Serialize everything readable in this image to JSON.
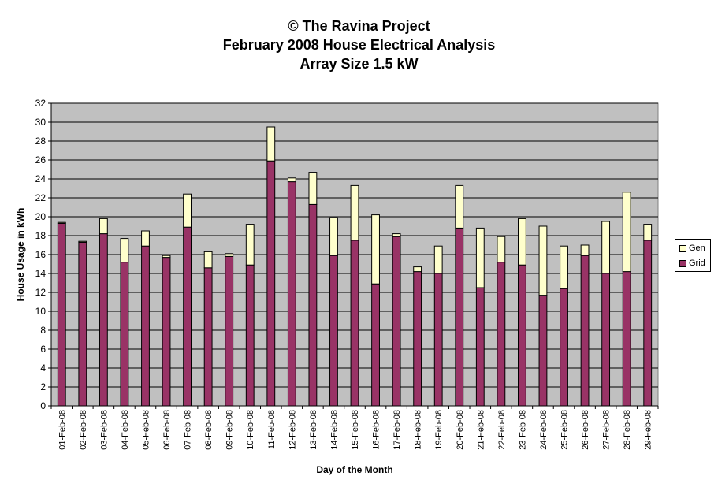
{
  "chart_data": {
    "type": "bar",
    "stacked": true,
    "title": "© The Ravina Project",
    "subtitle_lines": [
      "February 2008 House Electrical Analysis",
      "Array Size 1.5 kW"
    ],
    "xlabel": "Day of the Month",
    "ylabel": "House Usage in kWh",
    "ylim": [
      0,
      32
    ],
    "yticks": [
      0,
      2,
      4,
      6,
      8,
      10,
      12,
      14,
      16,
      18,
      20,
      22,
      24,
      26,
      28,
      30,
      32
    ],
    "grid": true,
    "legend_position": "right",
    "categories": [
      "01-Feb-08",
      "02-Feb-08",
      "03-Feb-08",
      "04-Feb-08",
      "05-Feb-08",
      "06-Feb-08",
      "07-Feb-08",
      "08-Feb-08",
      "09-Feb-08",
      "10-Feb-08",
      "11-Feb-08",
      "12-Feb-08",
      "13-Feb-08",
      "14-Feb-08",
      "15-Feb-08",
      "16-Feb-08",
      "17-Feb-08",
      "18-Feb-08",
      "19-Feb-08",
      "20-Feb-08",
      "21-Feb-08",
      "22-Feb-08",
      "23-Feb-08",
      "24-Feb-08",
      "25-Feb-08",
      "26-Feb-08",
      "27-Feb-08",
      "28-Feb-08",
      "29-Feb-08"
    ],
    "series": [
      {
        "name": "Grid",
        "color": "#993366",
        "values": [
          19.3,
          17.3,
          18.2,
          15.2,
          16.9,
          15.7,
          18.9,
          14.6,
          15.8,
          14.9,
          25.9,
          23.7,
          21.3,
          15.9,
          17.5,
          12.9,
          17.9,
          14.2,
          14.0,
          18.8,
          12.5,
          15.2,
          14.9,
          11.7,
          12.4,
          15.9,
          14.0,
          14.2,
          17.5
        ]
      },
      {
        "name": "Gen",
        "color": "#FFFFCC",
        "values": [
          0.1,
          0.1,
          1.6,
          2.5,
          1.6,
          0.2,
          3.5,
          1.7,
          0.3,
          4.3,
          3.6,
          0.4,
          3.4,
          4.0,
          5.8,
          7.3,
          0.3,
          0.5,
          2.9,
          4.5,
          6.3,
          2.7,
          4.9,
          7.3,
          4.5,
          1.1,
          5.5,
          8.4,
          1.7
        ]
      }
    ]
  },
  "colors": {
    "plot_background": "#C0C0C0",
    "gridline": "#000000",
    "grid_series": "#993366",
    "gen_series": "#FFFFCC"
  }
}
